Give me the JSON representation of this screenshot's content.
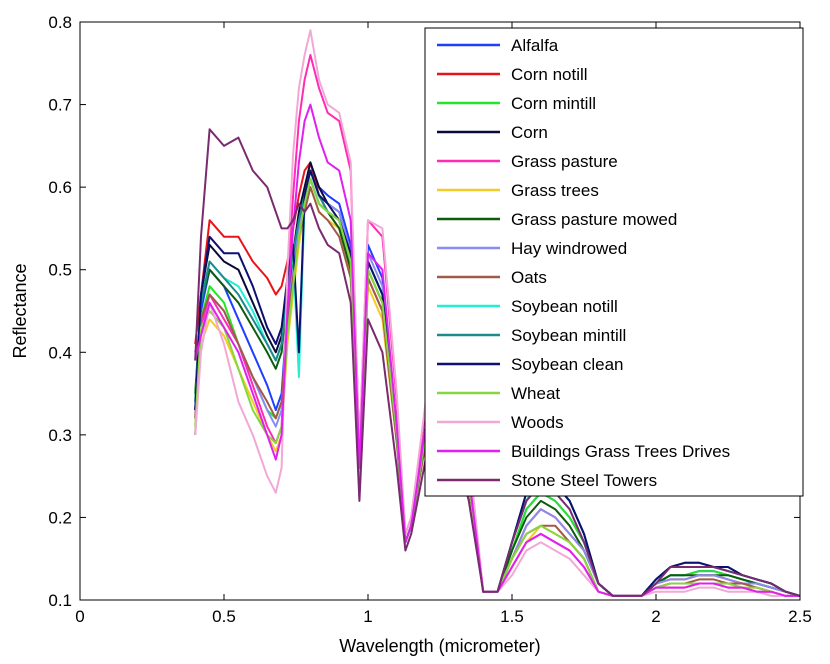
{
  "chart_data": {
    "type": "line",
    "title": "",
    "xlabel": "Wavelength (micrometer)",
    "ylabel": "Reflectance",
    "xlim": [
      0,
      2.5
    ],
    "ylim": [
      0.1,
      0.8
    ],
    "xticks": [
      0,
      0.5,
      1,
      1.5,
      2,
      2.5
    ],
    "xtick_labels": [
      "0",
      "0.5",
      "1",
      "1.5",
      "2",
      "2.5"
    ],
    "yticks": [
      0.1,
      0.2,
      0.3,
      0.4,
      0.5,
      0.6,
      0.7,
      0.8
    ],
    "ytick_labels": [
      "0.1",
      "0.2",
      "0.3",
      "0.4",
      "0.5",
      "0.6",
      "0.7",
      "0.8"
    ],
    "grid": false,
    "legend_position": "top-right",
    "x": [
      0.4,
      0.42,
      0.45,
      0.5,
      0.55,
      0.6,
      0.65,
      0.68,
      0.7,
      0.72,
      0.74,
      0.76,
      0.78,
      0.8,
      0.83,
      0.86,
      0.9,
      0.94,
      0.97,
      1.0,
      1.05,
      1.1,
      1.13,
      1.15,
      1.2,
      1.25,
      1.3,
      1.35,
      1.4,
      1.45,
      1.5,
      1.55,
      1.6,
      1.65,
      1.7,
      1.75,
      1.8,
      1.85,
      1.9,
      1.95,
      2.0,
      2.05,
      2.1,
      2.15,
      2.2,
      2.25,
      2.3,
      2.35,
      2.4,
      2.45,
      2.5
    ],
    "series": [
      {
        "name": "Alfalfa",
        "color": "#1f3fff",
        "values": [
          0.3,
          0.45,
          0.5,
          0.48,
          0.44,
          0.4,
          0.36,
          0.33,
          0.35,
          0.45,
          0.5,
          0.55,
          0.59,
          0.62,
          0.6,
          0.59,
          0.58,
          0.53,
          0.26,
          0.53,
          0.49,
          0.31,
          0.17,
          0.19,
          0.31,
          0.36,
          0.34,
          0.25,
          0.11,
          0.11,
          0.16,
          0.21,
          0.23,
          0.22,
          0.2,
          0.17,
          0.12,
          0.105,
          0.105,
          0.105,
          0.12,
          0.13,
          0.13,
          0.135,
          0.135,
          0.13,
          0.125,
          0.12,
          0.115,
          0.11,
          0.105
        ]
      },
      {
        "name": "Corn notill",
        "color": "#e8141a",
        "values": [
          0.41,
          0.47,
          0.56,
          0.54,
          0.54,
          0.51,
          0.49,
          0.47,
          0.48,
          0.51,
          0.55,
          0.59,
          0.62,
          0.63,
          0.59,
          0.57,
          0.55,
          0.5,
          0.26,
          0.49,
          0.45,
          0.3,
          0.17,
          0.19,
          0.29,
          0.33,
          0.32,
          0.24,
          0.11,
          0.11,
          0.15,
          0.19,
          0.21,
          0.2,
          0.18,
          0.16,
          0.12,
          0.105,
          0.105,
          0.105,
          0.12,
          0.125,
          0.125,
          0.13,
          0.13,
          0.125,
          0.12,
          0.12,
          0.115,
          0.11,
          0.105
        ]
      },
      {
        "name": "Corn mintill",
        "color": "#22e626",
        "values": [
          0.33,
          0.44,
          0.48,
          0.46,
          0.41,
          0.37,
          0.33,
          0.32,
          0.34,
          0.43,
          0.48,
          0.54,
          0.58,
          0.61,
          0.58,
          0.57,
          0.56,
          0.51,
          0.25,
          0.51,
          0.47,
          0.3,
          0.17,
          0.19,
          0.3,
          0.35,
          0.33,
          0.24,
          0.11,
          0.11,
          0.16,
          0.21,
          0.23,
          0.22,
          0.2,
          0.17,
          0.12,
          0.105,
          0.105,
          0.105,
          0.12,
          0.13,
          0.13,
          0.135,
          0.135,
          0.13,
          0.125,
          0.12,
          0.115,
          0.11,
          0.105
        ]
      },
      {
        "name": "Corn",
        "color": "#0a0a3a",
        "values": [
          0.33,
          0.47,
          0.53,
          0.51,
          0.5,
          0.46,
          0.42,
          0.4,
          0.42,
          0.48,
          0.52,
          0.57,
          0.6,
          0.63,
          0.6,
          0.58,
          0.57,
          0.52,
          0.26,
          0.51,
          0.47,
          0.31,
          0.17,
          0.19,
          0.31,
          0.36,
          0.34,
          0.25,
          0.11,
          0.11,
          0.17,
          0.22,
          0.25,
          0.24,
          0.22,
          0.18,
          0.12,
          0.105,
          0.105,
          0.105,
          0.125,
          0.14,
          0.14,
          0.14,
          0.14,
          0.135,
          0.13,
          0.125,
          0.12,
          0.11,
          0.105
        ]
      },
      {
        "name": "Grass pasture",
        "color": "#ff2bb4",
        "values": [
          0.4,
          0.43,
          0.47,
          0.44,
          0.41,
          0.36,
          0.31,
          0.29,
          0.31,
          0.48,
          0.59,
          0.68,
          0.73,
          0.76,
          0.72,
          0.69,
          0.68,
          0.62,
          0.28,
          0.56,
          0.54,
          0.34,
          0.18,
          0.2,
          0.33,
          0.4,
          0.38,
          0.27,
          0.11,
          0.11,
          0.14,
          0.17,
          0.18,
          0.17,
          0.16,
          0.14,
          0.11,
          0.105,
          0.105,
          0.105,
          0.115,
          0.115,
          0.115,
          0.12,
          0.12,
          0.115,
          0.115,
          0.11,
          0.11,
          0.105,
          0.105
        ]
      },
      {
        "name": "Grass trees",
        "color": "#f2cd2a",
        "values": [
          0.3,
          0.41,
          0.44,
          0.42,
          0.38,
          0.34,
          0.3,
          0.28,
          0.3,
          0.41,
          0.47,
          0.53,
          0.57,
          0.6,
          0.57,
          0.56,
          0.55,
          0.5,
          0.24,
          0.48,
          0.44,
          0.29,
          0.17,
          0.19,
          0.29,
          0.33,
          0.31,
          0.23,
          0.11,
          0.11,
          0.14,
          0.17,
          0.19,
          0.18,
          0.17,
          0.15,
          0.11,
          0.105,
          0.105,
          0.105,
          0.115,
          0.12,
          0.12,
          0.12,
          0.12,
          0.12,
          0.115,
          0.115,
          0.11,
          0.105,
          0.105
        ]
      },
      {
        "name": "Grass pasture mowed",
        "color": "#0d5c0d",
        "values": [
          0.35,
          0.46,
          0.5,
          0.48,
          0.46,
          0.43,
          0.4,
          0.38,
          0.4,
          0.47,
          0.51,
          0.55,
          0.58,
          0.61,
          0.58,
          0.57,
          0.55,
          0.5,
          0.25,
          0.5,
          0.46,
          0.3,
          0.17,
          0.19,
          0.3,
          0.35,
          0.33,
          0.24,
          0.11,
          0.11,
          0.16,
          0.2,
          0.22,
          0.21,
          0.19,
          0.16,
          0.12,
          0.105,
          0.105,
          0.105,
          0.12,
          0.13,
          0.13,
          0.13,
          0.13,
          0.13,
          0.125,
          0.12,
          0.115,
          0.11,
          0.105
        ]
      },
      {
        "name": "Hay windrowed",
        "color": "#8a8cf2",
        "values": [
          0.32,
          0.44,
          0.47,
          0.45,
          0.41,
          0.37,
          0.33,
          0.31,
          0.33,
          0.44,
          0.5,
          0.55,
          0.59,
          0.62,
          0.59,
          0.58,
          0.57,
          0.52,
          0.25,
          0.52,
          0.48,
          0.3,
          0.17,
          0.19,
          0.3,
          0.35,
          0.33,
          0.24,
          0.11,
          0.11,
          0.15,
          0.19,
          0.21,
          0.2,
          0.18,
          0.16,
          0.12,
          0.105,
          0.105,
          0.105,
          0.12,
          0.125,
          0.125,
          0.13,
          0.13,
          0.125,
          0.12,
          0.12,
          0.115,
          0.11,
          0.105
        ]
      },
      {
        "name": "Oats",
        "color": "#a05a48",
        "values": [
          0.32,
          0.44,
          0.47,
          0.45,
          0.41,
          0.37,
          0.34,
          0.32,
          0.34,
          0.44,
          0.49,
          0.54,
          0.57,
          0.6,
          0.57,
          0.56,
          0.54,
          0.49,
          0.25,
          0.49,
          0.45,
          0.29,
          0.17,
          0.19,
          0.29,
          0.34,
          0.32,
          0.24,
          0.11,
          0.11,
          0.15,
          0.18,
          0.19,
          0.19,
          0.17,
          0.15,
          0.11,
          0.105,
          0.105,
          0.105,
          0.115,
          0.12,
          0.12,
          0.125,
          0.125,
          0.12,
          0.12,
          0.115,
          0.11,
          0.105,
          0.105
        ]
      },
      {
        "name": "Soybean notill",
        "color": "#1ff0d2",
        "values": [
          0.34,
          0.46,
          0.51,
          0.49,
          0.48,
          0.45,
          0.41,
          0.39,
          0.41,
          0.48,
          0.52,
          0.37,
          0.58,
          0.61,
          0.58,
          0.57,
          0.56,
          0.51,
          0.25,
          0.51,
          0.47,
          0.3,
          0.17,
          0.19,
          0.3,
          0.35,
          0.33,
          0.24,
          0.11,
          0.11,
          0.17,
          0.22,
          0.25,
          0.24,
          0.22,
          0.18,
          0.12,
          0.105,
          0.105,
          0.105,
          0.125,
          0.14,
          0.14,
          0.14,
          0.14,
          0.135,
          0.13,
          0.125,
          0.12,
          0.11,
          0.105
        ]
      },
      {
        "name": "Soybean mintill",
        "color": "#1d8a8c",
        "values": [
          0.34,
          0.46,
          0.51,
          0.49,
          0.47,
          0.44,
          0.41,
          0.39,
          0.41,
          0.48,
          0.52,
          0.56,
          0.59,
          0.62,
          0.59,
          0.57,
          0.56,
          0.51,
          0.25,
          0.51,
          0.47,
          0.3,
          0.17,
          0.19,
          0.3,
          0.35,
          0.33,
          0.24,
          0.11,
          0.11,
          0.17,
          0.23,
          0.25,
          0.24,
          0.22,
          0.18,
          0.12,
          0.105,
          0.105,
          0.105,
          0.125,
          0.14,
          0.145,
          0.145,
          0.14,
          0.14,
          0.13,
          0.125,
          0.12,
          0.11,
          0.105
        ]
      },
      {
        "name": "Soybean clean",
        "color": "#0e1070",
        "values": [
          0.33,
          0.47,
          0.54,
          0.52,
          0.52,
          0.48,
          0.43,
          0.41,
          0.43,
          0.49,
          0.53,
          0.4,
          0.59,
          0.62,
          0.59,
          0.58,
          0.56,
          0.52,
          0.25,
          0.51,
          0.47,
          0.3,
          0.17,
          0.19,
          0.3,
          0.35,
          0.33,
          0.24,
          0.11,
          0.11,
          0.17,
          0.23,
          0.25,
          0.24,
          0.22,
          0.18,
          0.12,
          0.105,
          0.105,
          0.105,
          0.125,
          0.14,
          0.145,
          0.145,
          0.14,
          0.14,
          0.13,
          0.125,
          0.12,
          0.11,
          0.105
        ]
      },
      {
        "name": "Wheat",
        "color": "#86d63d",
        "values": [
          0.31,
          0.43,
          0.45,
          0.43,
          0.38,
          0.33,
          0.3,
          0.29,
          0.31,
          0.42,
          0.48,
          0.54,
          0.58,
          0.61,
          0.58,
          0.57,
          0.56,
          0.51,
          0.25,
          0.5,
          0.46,
          0.3,
          0.17,
          0.19,
          0.3,
          0.35,
          0.33,
          0.24,
          0.11,
          0.11,
          0.15,
          0.18,
          0.19,
          0.18,
          0.17,
          0.15,
          0.11,
          0.105,
          0.105,
          0.105,
          0.115,
          0.12,
          0.12,
          0.12,
          0.12,
          0.12,
          0.115,
          0.115,
          0.11,
          0.105,
          0.105
        ]
      },
      {
        "name": "Woods",
        "color": "#f2a8d6",
        "values": [
          0.3,
          0.4,
          0.46,
          0.41,
          0.34,
          0.3,
          0.25,
          0.23,
          0.26,
          0.5,
          0.64,
          0.72,
          0.76,
          0.79,
          0.73,
          0.7,
          0.69,
          0.63,
          0.28,
          0.56,
          0.55,
          0.35,
          0.18,
          0.2,
          0.34,
          0.41,
          0.39,
          0.28,
          0.11,
          0.11,
          0.13,
          0.16,
          0.17,
          0.16,
          0.15,
          0.13,
          0.11,
          0.105,
          0.105,
          0.105,
          0.11,
          0.11,
          0.11,
          0.115,
          0.115,
          0.11,
          0.11,
          0.11,
          0.105,
          0.105,
          0.105
        ]
      },
      {
        "name": "Buildings Grass Trees Drives",
        "color": "#e020f0",
        "values": [
          0.39,
          0.42,
          0.46,
          0.43,
          0.4,
          0.35,
          0.3,
          0.27,
          0.3,
          0.45,
          0.55,
          0.63,
          0.68,
          0.7,
          0.66,
          0.63,
          0.62,
          0.56,
          0.26,
          0.52,
          0.5,
          0.31,
          0.17,
          0.19,
          0.31,
          0.37,
          0.35,
          0.25,
          0.11,
          0.11,
          0.14,
          0.17,
          0.18,
          0.17,
          0.16,
          0.14,
          0.11,
          0.105,
          0.105,
          0.105,
          0.115,
          0.115,
          0.115,
          0.12,
          0.12,
          0.115,
          0.115,
          0.11,
          0.11,
          0.105,
          0.105
        ]
      },
      {
        "name": "Stone Steel Towers",
        "color": "#7a2a6e",
        "values": [
          0.39,
          0.54,
          0.67,
          0.65,
          0.66,
          0.62,
          0.6,
          0.57,
          0.55,
          0.55,
          0.56,
          0.58,
          0.57,
          0.58,
          0.55,
          0.53,
          0.52,
          0.46,
          0.22,
          0.44,
          0.4,
          0.26,
          0.16,
          0.18,
          0.27,
          0.31,
          0.29,
          0.22,
          0.11,
          0.11,
          0.17,
          0.22,
          0.24,
          0.23,
          0.21,
          0.17,
          0.12,
          0.105,
          0.105,
          0.105,
          0.12,
          0.14,
          0.14,
          0.14,
          0.14,
          0.135,
          0.13,
          0.125,
          0.12,
          0.11,
          0.105
        ]
      }
    ]
  }
}
